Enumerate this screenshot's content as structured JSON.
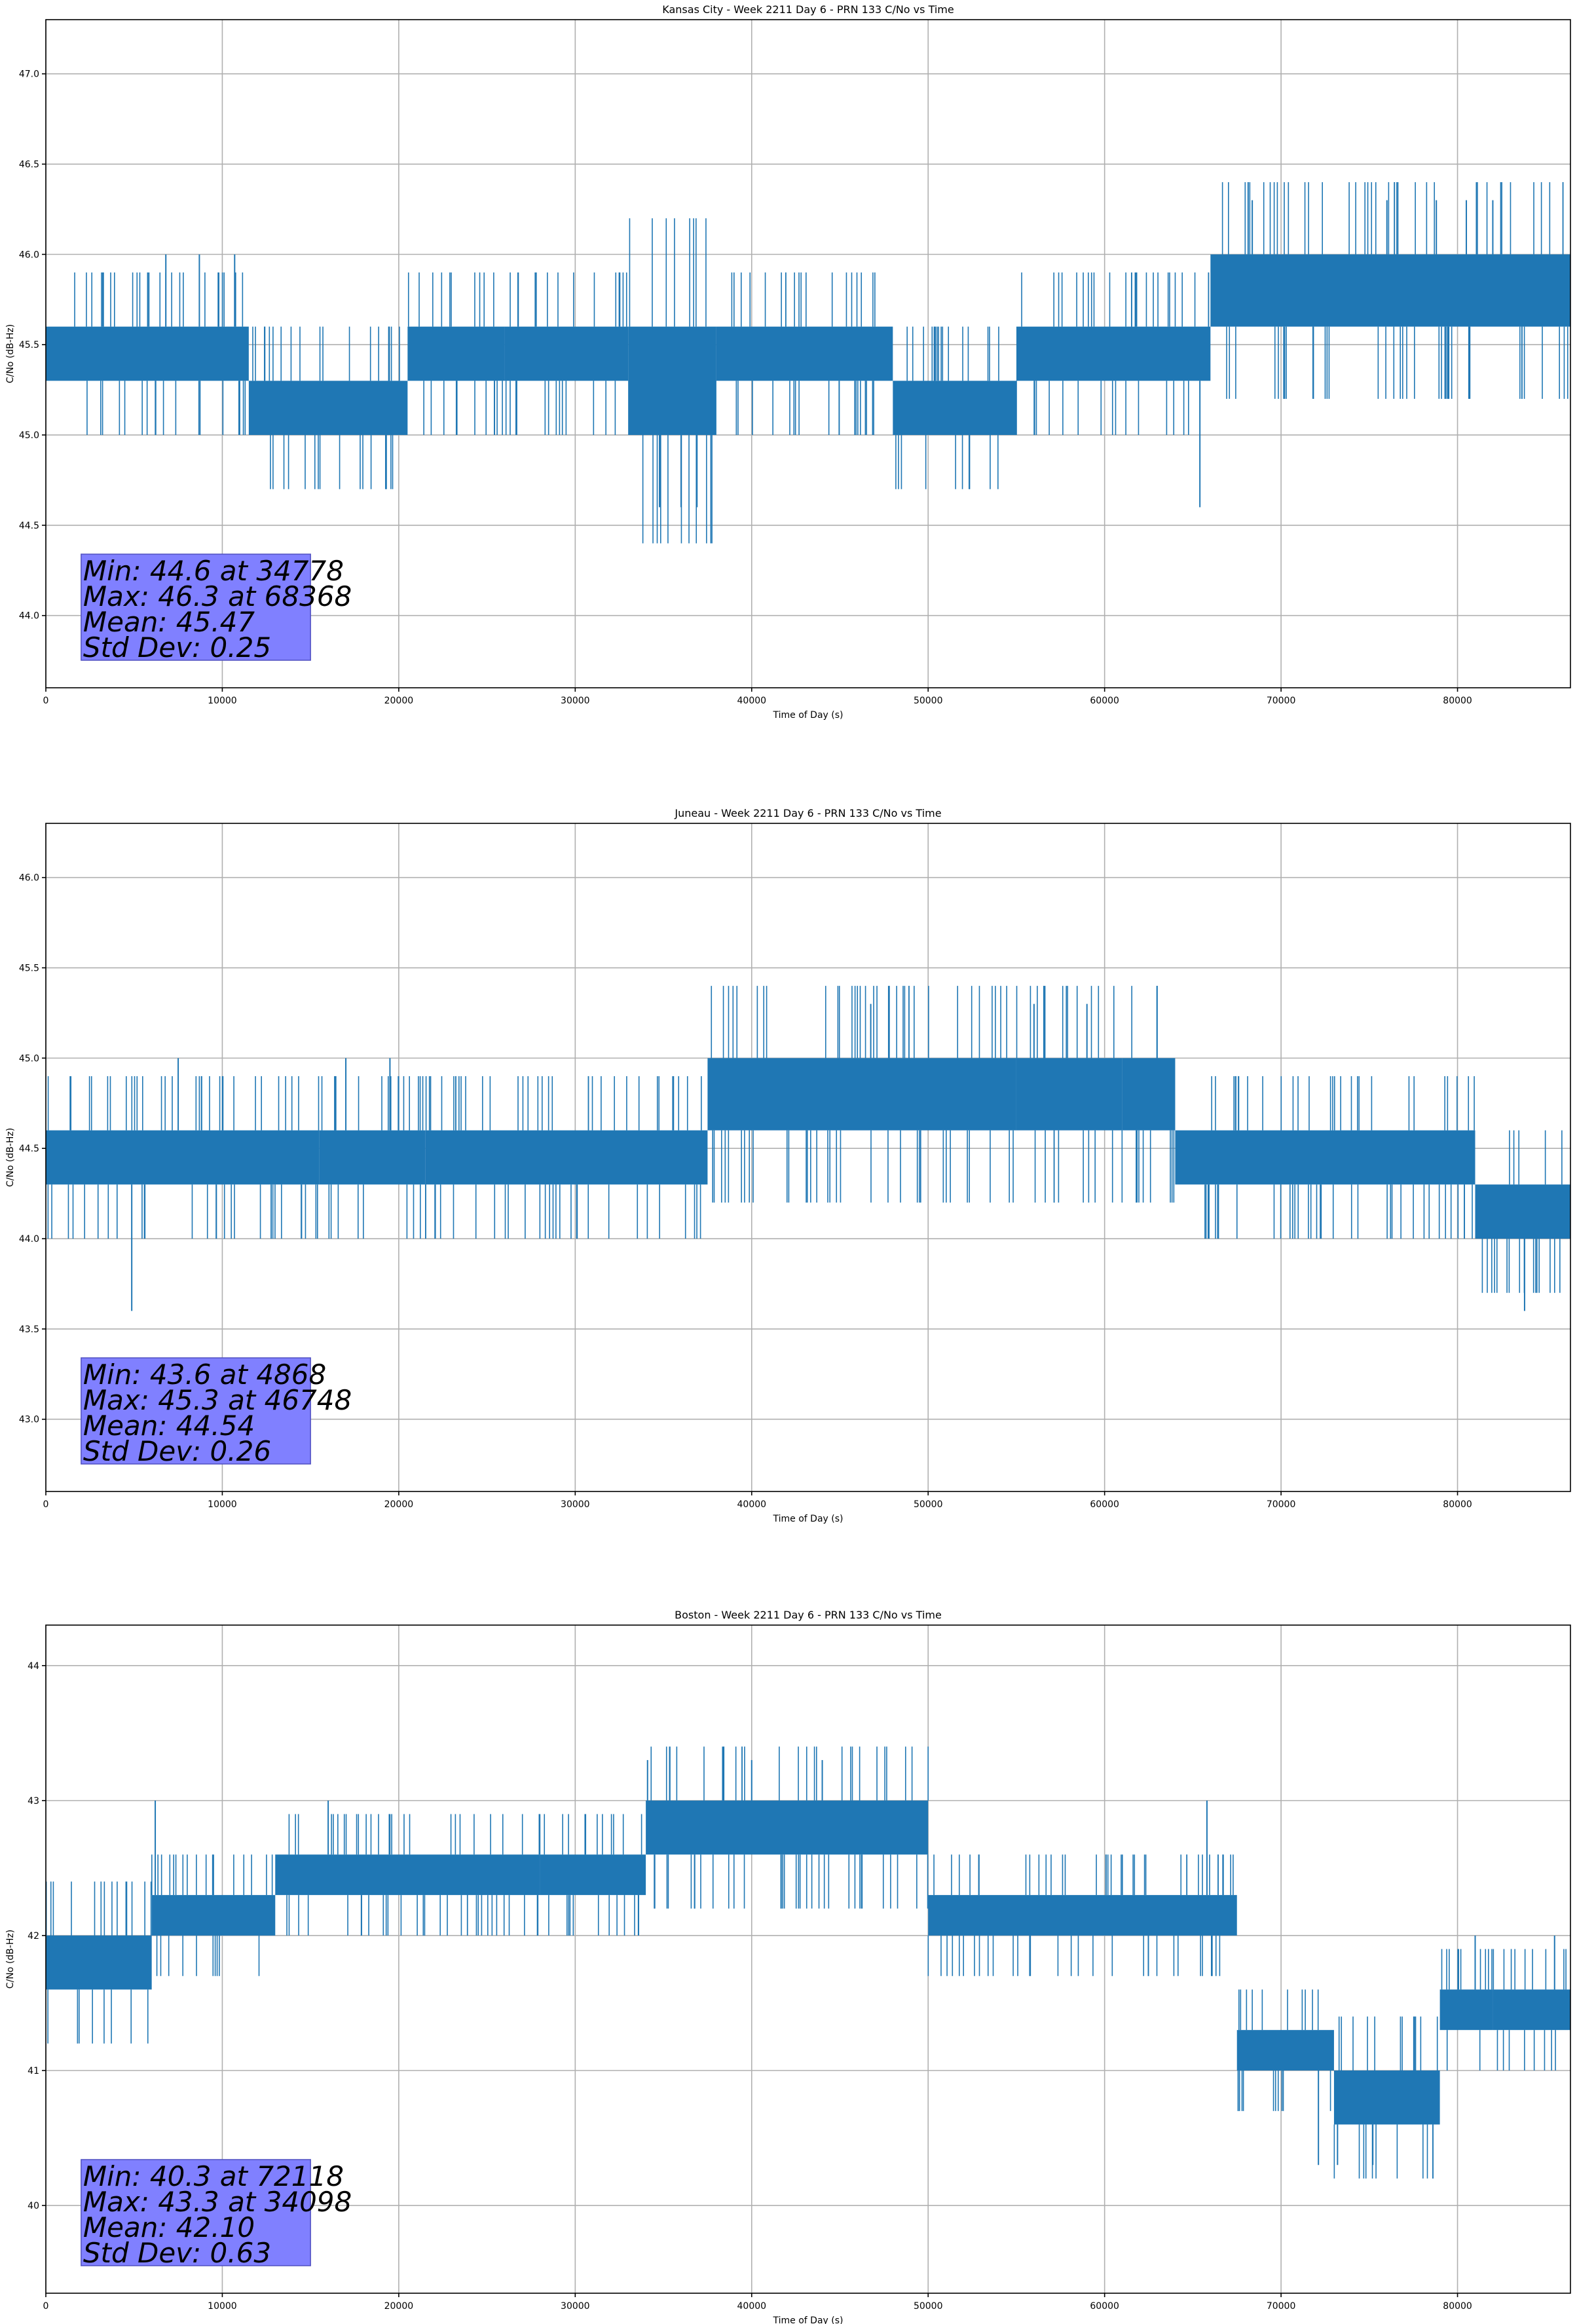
{
  "figure": {
    "series_color": "#1f77b4",
    "stats_box_color": "#8080ff"
  },
  "chart_data": [
    {
      "type": "line",
      "title": "Kansas City - Week 2211 Day 6 - PRN 133 C/No vs Time",
      "xlabel": "Time of Day (s)",
      "ylabel": "C/No (dB-Hz)",
      "xlim": [
        0,
        86400
      ],
      "ylim": [
        43.6,
        47.3
      ],
      "xticks": [
        0,
        10000,
        20000,
        30000,
        40000,
        50000,
        60000,
        70000,
        80000
      ],
      "yticks": [
        "44.0",
        "44.5",
        "45.0",
        "45.5",
        "46.0",
        "46.5",
        "47.0"
      ],
      "grid": true,
      "stats": {
        "min": "Min: 44.6 at 34778",
        "max": "Max: 46.3 at 68368",
        "mean": "Mean: 45.47",
        "std": "Std Dev: 0.25"
      },
      "bands": [
        {
          "x": [
            0,
            11500
          ],
          "y": [
            45.3,
            45.6
          ]
        },
        {
          "x": [
            11500,
            20500
          ],
          "y": [
            45.0,
            45.3
          ]
        },
        {
          "x": [
            20500,
            26000
          ],
          "y": [
            45.3,
            45.6
          ]
        },
        {
          "x": [
            26000,
            33000
          ],
          "y": [
            45.3,
            45.6
          ]
        },
        {
          "x": [
            33000,
            38000
          ],
          "y": [
            45.0,
            45.6
          ]
        },
        {
          "x": [
            38000,
            48000
          ],
          "y": [
            45.3,
            45.6
          ]
        },
        {
          "x": [
            48000,
            55000
          ],
          "y": [
            45.0,
            45.3
          ]
        },
        {
          "x": [
            55000,
            66000
          ],
          "y": [
            45.3,
            45.6
          ]
        },
        {
          "x": [
            66000,
            86400
          ],
          "y": [
            45.6,
            46.0
          ]
        }
      ],
      "spikes": [
        {
          "x": 6800,
          "y": 46.0
        },
        {
          "x": 8700,
          "y": 46.0
        },
        {
          "x": 10700,
          "y": 46.0
        },
        {
          "x": 34778,
          "y": 44.6
        },
        {
          "x": 36000,
          "y": 44.6
        },
        {
          "x": 36900,
          "y": 44.6
        },
        {
          "x": 65400,
          "y": 44.6
        },
        {
          "x": 68368,
          "y": 46.3
        },
        {
          "x": 76000,
          "y": 46.3
        },
        {
          "x": 78800,
          "y": 46.3
        },
        {
          "x": 80500,
          "y": 46.3
        },
        {
          "x": 82000,
          "y": 46.3
        }
      ]
    },
    {
      "type": "line",
      "title": "Juneau - Week 2211 Day 6 - PRN 133 C/No vs Time",
      "xlabel": "Time of Day (s)",
      "ylabel": "C/No (dB-Hz)",
      "xlim": [
        0,
        86400
      ],
      "ylim": [
        42.6,
        46.3
      ],
      "xticks": [
        0,
        10000,
        20000,
        30000,
        40000,
        50000,
        60000,
        70000,
        80000
      ],
      "yticks": [
        "43.0",
        "43.5",
        "44.0",
        "44.5",
        "45.0",
        "45.5",
        "46.0"
      ],
      "grid": true,
      "stats": {
        "min": "Min: 43.6 at 4868",
        "max": "Max: 45.3 at 46748",
        "mean": "Mean: 44.54",
        "std": "Std Dev: 0.26"
      },
      "bands": [
        {
          "x": [
            0,
            15500
          ],
          "y": [
            44.3,
            44.6
          ]
        },
        {
          "x": [
            15500,
            21500
          ],
          "y": [
            44.3,
            44.6
          ]
        },
        {
          "x": [
            21500,
            37500
          ],
          "y": [
            44.3,
            44.6
          ]
        },
        {
          "x": [
            37500,
            55000
          ],
          "y": [
            44.6,
            45.0
          ]
        },
        {
          "x": [
            55000,
            61000
          ],
          "y": [
            44.6,
            45.0
          ]
        },
        {
          "x": [
            61000,
            64000
          ],
          "y": [
            44.6,
            45.0
          ]
        },
        {
          "x": [
            64000,
            81000
          ],
          "y": [
            44.3,
            44.6
          ]
        },
        {
          "x": [
            81000,
            86400
          ],
          "y": [
            44.0,
            44.3
          ]
        }
      ],
      "spikes": [
        {
          "x": 4868,
          "y": 43.6
        },
        {
          "x": 7500,
          "y": 45.0
        },
        {
          "x": 17000,
          "y": 45.0
        },
        {
          "x": 19500,
          "y": 45.0
        },
        {
          "x": 46748,
          "y": 45.3
        },
        {
          "x": 56000,
          "y": 45.3
        },
        {
          "x": 59000,
          "y": 45.3
        },
        {
          "x": 83800,
          "y": 43.6
        }
      ]
    },
    {
      "type": "line",
      "title": "Boston - Week 2211 Day 6 - PRN 133 C/No vs Time",
      "xlabel": "Time of Day (s)",
      "ylabel": "C/No (dB-Hz)",
      "xlim": [
        0,
        86400
      ],
      "ylim": [
        39.35,
        44.3
      ],
      "xticks": [
        0,
        10000,
        20000,
        30000,
        40000,
        50000,
        60000,
        70000,
        80000
      ],
      "yticks": [
        "40",
        "41",
        "42",
        "43",
        "44"
      ],
      "grid": true,
      "stats": {
        "min": "Min: 40.3 at 72118",
        "max": "Max: 43.3 at 34098",
        "mean": "Mean: 42.10",
        "std": "Std Dev: 0.63"
      },
      "bands": [
        {
          "x": [
            0,
            6000
          ],
          "y": [
            41.6,
            42.0
          ]
        },
        {
          "x": [
            6000,
            13000
          ],
          "y": [
            42.0,
            42.3
          ]
        },
        {
          "x": [
            13000,
            28000
          ],
          "y": [
            42.3,
            42.6
          ]
        },
        {
          "x": [
            28000,
            34000
          ],
          "y": [
            42.3,
            42.6
          ]
        },
        {
          "x": [
            34000,
            50000
          ],
          "y": [
            42.6,
            43.0
          ]
        },
        {
          "x": [
            50000,
            67500
          ],
          "y": [
            42.0,
            42.3
          ]
        },
        {
          "x": [
            67500,
            73000
          ],
          "y": [
            41.0,
            41.3
          ]
        },
        {
          "x": [
            73000,
            79000
          ],
          "y": [
            40.6,
            41.0
          ]
        },
        {
          "x": [
            79000,
            82000
          ],
          "y": [
            41.3,
            41.6
          ]
        },
        {
          "x": [
            82000,
            86400
          ],
          "y": [
            41.3,
            41.6
          ]
        }
      ],
      "spikes": [
        {
          "x": 6200,
          "y": 43.0
        },
        {
          "x": 16000,
          "y": 43.0
        },
        {
          "x": 34098,
          "y": 43.3
        },
        {
          "x": 40000,
          "y": 43.3
        },
        {
          "x": 44000,
          "y": 43.3
        },
        {
          "x": 65800,
          "y": 43.0
        },
        {
          "x": 72118,
          "y": 40.3
        },
        {
          "x": 73200,
          "y": 40.3
        },
        {
          "x": 75200,
          "y": 40.3
        },
        {
          "x": 81000,
          "y": 42.0
        },
        {
          "x": 85500,
          "y": 42.0
        }
      ]
    }
  ]
}
